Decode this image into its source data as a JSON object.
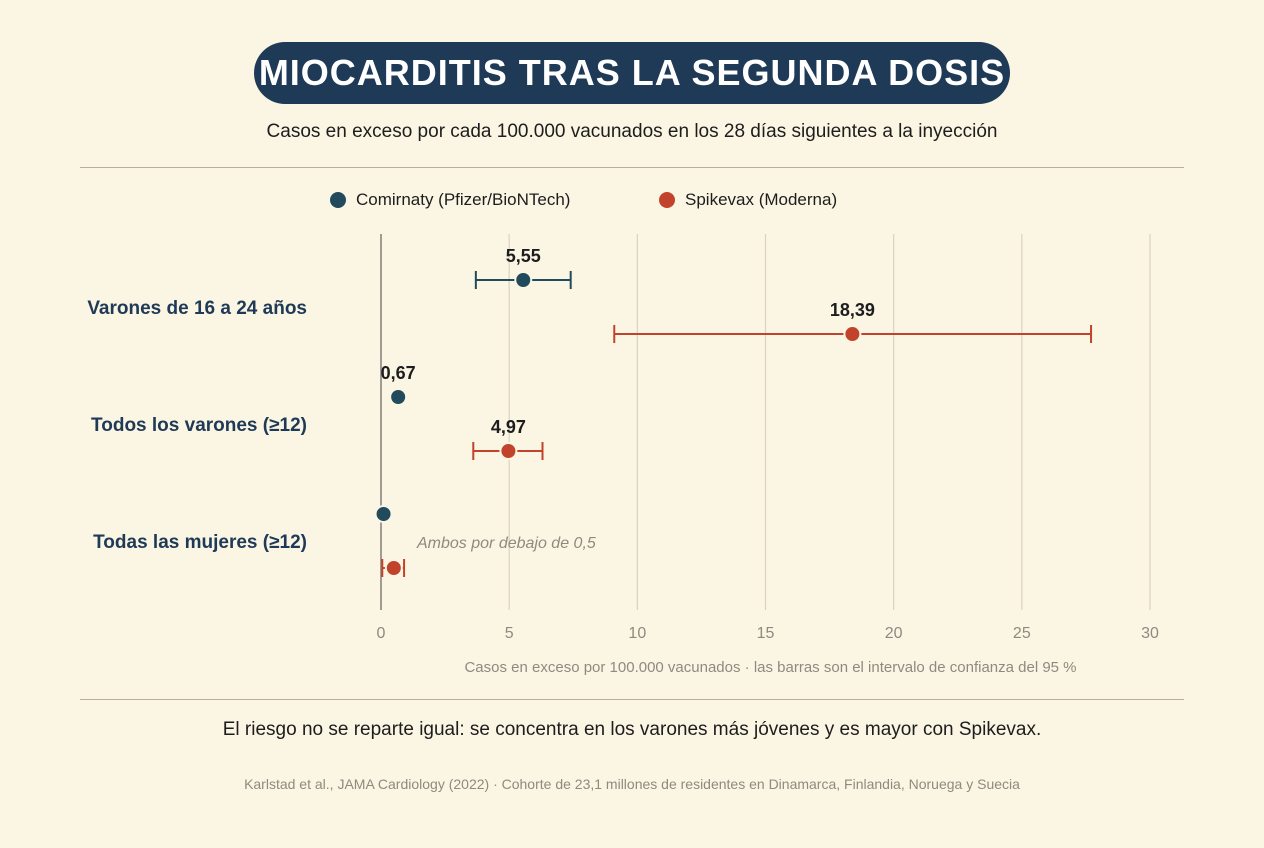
{
  "title": "MIOCARDITIS TRAS LA SEGUNDA DOSIS",
  "subtitle": "Casos en exceso por cada 100.000 vacunados en los 28 días siguientes a la inyección",
  "takeaway": "El riesgo no se reparte igual: se concentra en los varones más jóvenes y es mayor con Spikevax.",
  "source": "Karlstad et al., JAMA Cardiology (2022) · Cohorte de 23,1 millones de residentes en Dinamarca, Finlandia, Noruega y Suecia",
  "colors": {
    "background": "#fbf5e3",
    "title_pill": "#1e3a56",
    "comirnaty": "#214a5c",
    "spikevax": "#c2432c",
    "category_label": "#1e3a56"
  },
  "chart_data": {
    "type": "scatter",
    "orientation": "horizontal",
    "xlabel": "Casos en exceso por 100.000 vacunados · las barras son el intervalo de confianza del 95 %",
    "xlim": [
      0,
      30
    ],
    "xticks": [
      "0",
      "5",
      "10",
      "15",
      "20",
      "25",
      "30"
    ],
    "grid": true,
    "legend_position": "top",
    "categories": [
      "Varones de 16 a 24 años",
      "Todos los varones (≥12)",
      "Todas las mujeres (≥12)"
    ],
    "series": [
      {
        "name": "Comirnaty (Pfizer/BioNTech)",
        "color": "#214a5c",
        "points": [
          {
            "value": 5.55,
            "label": "5,55",
            "ci": [
              3.7,
              7.4
            ]
          },
          {
            "value": 0.67,
            "label": "0,67",
            "ci": null
          },
          {
            "value": 0.1,
            "label": "",
            "ci": null
          }
        ]
      },
      {
        "name": "Spikevax (Moderna)",
        "color": "#c2432c",
        "points": [
          {
            "value": 18.39,
            "label": "18,39",
            "ci": [
              9.1,
              27.7
            ]
          },
          {
            "value": 4.97,
            "label": "4,97",
            "ci": [
              3.6,
              6.3
            ]
          },
          {
            "value": 0.5,
            "label": "",
            "ci": [
              0.05,
              0.9
            ]
          }
        ]
      }
    ],
    "annotations": [
      {
        "category": "Todas las mujeres (≥12)",
        "text": "Ambos por debajo de 0,5"
      }
    ]
  }
}
